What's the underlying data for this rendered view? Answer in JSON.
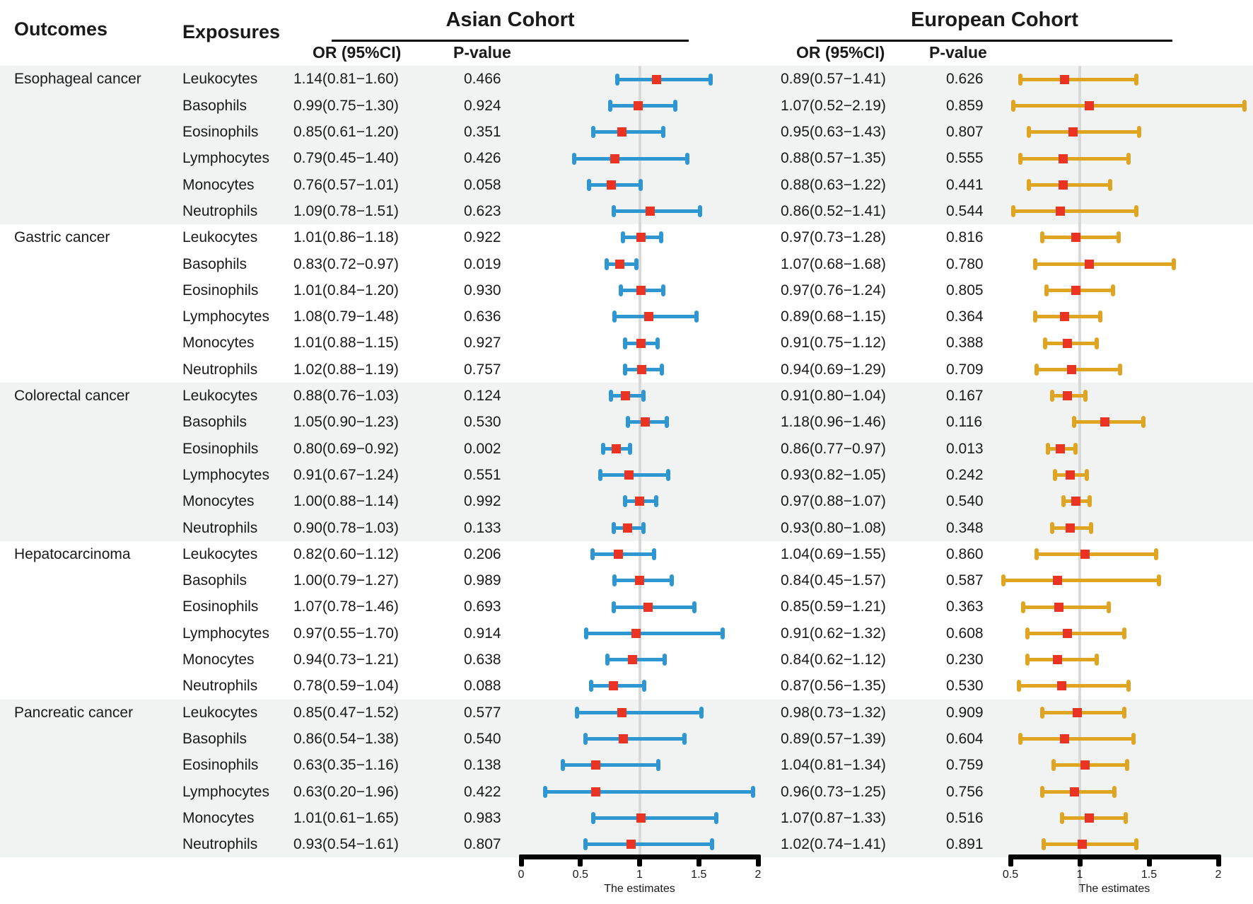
{
  "header": {
    "outcomes_label": "Outcomes",
    "exposures_label": "Exposures",
    "asian_title": "Asian Cohort",
    "european_title": "European Cohort",
    "or_label": "OR (95%CI)",
    "pvalue_label": "P-value"
  },
  "colors": {
    "bar_asian": "#2E96D1",
    "bar_european": "#DFA521",
    "marker": "#E93323",
    "ref_line": "#D9D9D9",
    "stripe": "#F1F2F2",
    "axis": "#000000"
  },
  "chart_data": {
    "type": "forest",
    "xlabel": "The estimates",
    "exposure_set": [
      "Leukocytes",
      "Basophils",
      "Eosinophils",
      "Lymphocytes",
      "Monocytes",
      "Neutrophils"
    ],
    "outcomes": [
      "Esophageal cancer",
      "Gastric cancer",
      "Colorectal cancer",
      "Hepatocarcinoma",
      "Pancreatic cancer"
    ],
    "cohorts": {
      "asian": {
        "name": "Asian Cohort",
        "xlim": [
          0,
          2
        ],
        "ticks": [
          "0",
          "0.5",
          "1",
          "1.5",
          "2"
        ],
        "ref": 1
      },
      "european": {
        "name": "European Cohort",
        "xlim": [
          0.5,
          2
        ],
        "ticks": [
          "0.5",
          "1",
          "1.5",
          "2"
        ],
        "ref": 1
      }
    },
    "rows": [
      {
        "outcome": "Esophageal cancer",
        "exposure": "Leukocytes",
        "asian": {
          "or": 1.14,
          "lo": 0.81,
          "hi": 1.6,
          "or_text": "1.14(0.81−1.60)",
          "p": "0.466"
        },
        "european": {
          "or": 0.89,
          "lo": 0.57,
          "hi": 1.41,
          "or_text": "0.89(0.57−1.41)",
          "p": "0.626"
        }
      },
      {
        "outcome": "Esophageal cancer",
        "exposure": "Basophils",
        "asian": {
          "or": 0.99,
          "lo": 0.75,
          "hi": 1.3,
          "or_text": "0.99(0.75−1.30)",
          "p": "0.924"
        },
        "european": {
          "or": 1.07,
          "lo": 0.52,
          "hi": 2.19,
          "or_text": "1.07(0.52−2.19)",
          "p": "0.859"
        }
      },
      {
        "outcome": "Esophageal cancer",
        "exposure": "Eosinophils",
        "asian": {
          "or": 0.85,
          "lo": 0.61,
          "hi": 1.2,
          "or_text": "0.85(0.61−1.20)",
          "p": "0.351"
        },
        "european": {
          "or": 0.95,
          "lo": 0.63,
          "hi": 1.43,
          "or_text": "0.95(0.63−1.43)",
          "p": "0.807"
        }
      },
      {
        "outcome": "Esophageal cancer",
        "exposure": "Lymphocytes",
        "asian": {
          "or": 0.79,
          "lo": 0.45,
          "hi": 1.4,
          "or_text": "0.79(0.45−1.40)",
          "p": "0.426"
        },
        "european": {
          "or": 0.88,
          "lo": 0.57,
          "hi": 1.35,
          "or_text": "0.88(0.57−1.35)",
          "p": "0.555"
        }
      },
      {
        "outcome": "Esophageal cancer",
        "exposure": "Monocytes",
        "asian": {
          "or": 0.76,
          "lo": 0.57,
          "hi": 1.01,
          "or_text": "0.76(0.57−1.01)",
          "p": "0.058"
        },
        "european": {
          "or": 0.88,
          "lo": 0.63,
          "hi": 1.22,
          "or_text": "0.88(0.63−1.22)",
          "p": "0.441"
        }
      },
      {
        "outcome": "Esophageal cancer",
        "exposure": "Neutrophils",
        "asian": {
          "or": 1.09,
          "lo": 0.78,
          "hi": 1.51,
          "or_text": "1.09(0.78−1.51)",
          "p": "0.623"
        },
        "european": {
          "or": 0.86,
          "lo": 0.52,
          "hi": 1.41,
          "or_text": "0.86(0.52−1.41)",
          "p": "0.544"
        }
      },
      {
        "outcome": "Gastric cancer",
        "exposure": "Leukocytes",
        "asian": {
          "or": 1.01,
          "lo": 0.86,
          "hi": 1.18,
          "or_text": "1.01(0.86−1.18)",
          "p": "0.922"
        },
        "european": {
          "or": 0.97,
          "lo": 0.73,
          "hi": 1.28,
          "or_text": "0.97(0.73−1.28)",
          "p": "0.816"
        }
      },
      {
        "outcome": "Gastric cancer",
        "exposure": "Basophils",
        "asian": {
          "or": 0.83,
          "lo": 0.72,
          "hi": 0.97,
          "or_text": "0.83(0.72−0.97)",
          "p": "0.019"
        },
        "european": {
          "or": 1.07,
          "lo": 0.68,
          "hi": 1.68,
          "or_text": "1.07(0.68−1.68)",
          "p": "0.780"
        }
      },
      {
        "outcome": "Gastric cancer",
        "exposure": "Eosinophils",
        "asian": {
          "or": 1.01,
          "lo": 0.84,
          "hi": 1.2,
          "or_text": "1.01(0.84−1.20)",
          "p": "0.930"
        },
        "european": {
          "or": 0.97,
          "lo": 0.76,
          "hi": 1.24,
          "or_text": "0.97(0.76−1.24)",
          "p": "0.805"
        }
      },
      {
        "outcome": "Gastric cancer",
        "exposure": "Lymphocytes",
        "asian": {
          "or": 1.08,
          "lo": 0.79,
          "hi": 1.48,
          "or_text": "1.08(0.79−1.48)",
          "p": "0.636"
        },
        "european": {
          "or": 0.89,
          "lo": 0.68,
          "hi": 1.15,
          "or_text": "0.89(0.68−1.15)",
          "p": "0.364"
        }
      },
      {
        "outcome": "Gastric cancer",
        "exposure": "Monocytes",
        "asian": {
          "or": 1.01,
          "lo": 0.88,
          "hi": 1.15,
          "or_text": "1.01(0.88−1.15)",
          "p": "0.927"
        },
        "european": {
          "or": 0.91,
          "lo": 0.75,
          "hi": 1.12,
          "or_text": "0.91(0.75−1.12)",
          "p": "0.388"
        }
      },
      {
        "outcome": "Gastric cancer",
        "exposure": "Neutrophils",
        "asian": {
          "or": 1.02,
          "lo": 0.88,
          "hi": 1.19,
          "or_text": "1.02(0.88−1.19)",
          "p": "0.757"
        },
        "european": {
          "or": 0.94,
          "lo": 0.69,
          "hi": 1.29,
          "or_text": "0.94(0.69−1.29)",
          "p": "0.709"
        }
      },
      {
        "outcome": "Colorectal cancer",
        "exposure": "Leukocytes",
        "asian": {
          "or": 0.88,
          "lo": 0.76,
          "hi": 1.03,
          "or_text": "0.88(0.76−1.03)",
          "p": "0.124"
        },
        "european": {
          "or": 0.91,
          "lo": 0.8,
          "hi": 1.04,
          "or_text": "0.91(0.80−1.04)",
          "p": "0.167"
        }
      },
      {
        "outcome": "Colorectal cancer",
        "exposure": "Basophils",
        "asian": {
          "or": 1.05,
          "lo": 0.9,
          "hi": 1.23,
          "or_text": "1.05(0.90−1.23)",
          "p": "0.530"
        },
        "european": {
          "or": 1.18,
          "lo": 0.96,
          "hi": 1.46,
          "or_text": "1.18(0.96−1.46)",
          "p": "0.116"
        }
      },
      {
        "outcome": "Colorectal cancer",
        "exposure": "Eosinophils",
        "asian": {
          "or": 0.8,
          "lo": 0.69,
          "hi": 0.92,
          "or_text": "0.80(0.69−0.92)",
          "p": "0.002"
        },
        "european": {
          "or": 0.86,
          "lo": 0.77,
          "hi": 0.97,
          "or_text": "0.86(0.77−0.97)",
          "p": "0.013"
        }
      },
      {
        "outcome": "Colorectal cancer",
        "exposure": "Lymphocytes",
        "asian": {
          "or": 0.91,
          "lo": 0.67,
          "hi": 1.24,
          "or_text": "0.91(0.67−1.24)",
          "p": "0.551"
        },
        "european": {
          "or": 0.93,
          "lo": 0.82,
          "hi": 1.05,
          "or_text": "0.93(0.82−1.05)",
          "p": "0.242"
        }
      },
      {
        "outcome": "Colorectal cancer",
        "exposure": "Monocytes",
        "asian": {
          "or": 1.0,
          "lo": 0.88,
          "hi": 1.14,
          "or_text": "1.00(0.88−1.14)",
          "p": "0.992"
        },
        "european": {
          "or": 0.97,
          "lo": 0.88,
          "hi": 1.07,
          "or_text": "0.97(0.88−1.07)",
          "p": "0.540"
        }
      },
      {
        "outcome": "Colorectal cancer",
        "exposure": "Neutrophils",
        "asian": {
          "or": 0.9,
          "lo": 0.78,
          "hi": 1.03,
          "or_text": "0.90(0.78−1.03)",
          "p": "0.133"
        },
        "european": {
          "or": 0.93,
          "lo": 0.8,
          "hi": 1.08,
          "or_text": "0.93(0.80−1.08)",
          "p": "0.348"
        }
      },
      {
        "outcome": "Hepatocarcinoma",
        "exposure": "Leukocytes",
        "asian": {
          "or": 0.82,
          "lo": 0.6,
          "hi": 1.12,
          "or_text": "0.82(0.60−1.12)",
          "p": "0.206"
        },
        "european": {
          "or": 1.04,
          "lo": 0.69,
          "hi": 1.55,
          "or_text": "1.04(0.69−1.55)",
          "p": "0.860"
        }
      },
      {
        "outcome": "Hepatocarcinoma",
        "exposure": "Basophils",
        "asian": {
          "or": 1.0,
          "lo": 0.79,
          "hi": 1.27,
          "or_text": "1.00(0.79−1.27)",
          "p": "0.989"
        },
        "european": {
          "or": 0.84,
          "lo": 0.45,
          "hi": 1.57,
          "or_text": "0.84(0.45−1.57)",
          "p": "0.587"
        }
      },
      {
        "outcome": "Hepatocarcinoma",
        "exposure": "Eosinophils",
        "asian": {
          "or": 1.07,
          "lo": 0.78,
          "hi": 1.46,
          "or_text": "1.07(0.78−1.46)",
          "p": "0.693"
        },
        "european": {
          "or": 0.85,
          "lo": 0.59,
          "hi": 1.21,
          "or_text": "0.85(0.59−1.21)",
          "p": "0.363"
        }
      },
      {
        "outcome": "Hepatocarcinoma",
        "exposure": "Lymphocytes",
        "asian": {
          "or": 0.97,
          "lo": 0.55,
          "hi": 1.7,
          "or_text": "0.97(0.55−1.70)",
          "p": "0.914"
        },
        "european": {
          "or": 0.91,
          "lo": 0.62,
          "hi": 1.32,
          "or_text": "0.91(0.62−1.32)",
          "p": "0.608"
        }
      },
      {
        "outcome": "Hepatocarcinoma",
        "exposure": "Monocytes",
        "asian": {
          "or": 0.94,
          "lo": 0.73,
          "hi": 1.21,
          "or_text": "0.94(0.73−1.21)",
          "p": "0.638"
        },
        "european": {
          "or": 0.84,
          "lo": 0.62,
          "hi": 1.12,
          "or_text": "0.84(0.62−1.12)",
          "p": "0.230"
        }
      },
      {
        "outcome": "Hepatocarcinoma",
        "exposure": "Neutrophils",
        "asian": {
          "or": 0.78,
          "lo": 0.59,
          "hi": 1.04,
          "or_text": "0.78(0.59−1.04)",
          "p": "0.088"
        },
        "european": {
          "or": 0.87,
          "lo": 0.56,
          "hi": 1.35,
          "or_text": "0.87(0.56−1.35)",
          "p": "0.530"
        }
      },
      {
        "outcome": "Pancreatic cancer",
        "exposure": "Leukocytes",
        "asian": {
          "or": 0.85,
          "lo": 0.47,
          "hi": 1.52,
          "or_text": "0.85(0.47−1.52)",
          "p": "0.577"
        },
        "european": {
          "or": 0.98,
          "lo": 0.73,
          "hi": 1.32,
          "or_text": "0.98(0.73−1.32)",
          "p": "0.909"
        }
      },
      {
        "outcome": "Pancreatic cancer",
        "exposure": "Basophils",
        "asian": {
          "or": 0.86,
          "lo": 0.54,
          "hi": 1.38,
          "or_text": "0.86(0.54−1.38)",
          "p": "0.540"
        },
        "european": {
          "or": 0.89,
          "lo": 0.57,
          "hi": 1.39,
          "or_text": "0.89(0.57−1.39)",
          "p": "0.604"
        }
      },
      {
        "outcome": "Pancreatic cancer",
        "exposure": "Eosinophils",
        "asian": {
          "or": 0.63,
          "lo": 0.35,
          "hi": 1.16,
          "or_text": "0.63(0.35−1.16)",
          "p": "0.138"
        },
        "european": {
          "or": 1.04,
          "lo": 0.81,
          "hi": 1.34,
          "or_text": "1.04(0.81−1.34)",
          "p": "0.759"
        }
      },
      {
        "outcome": "Pancreatic cancer",
        "exposure": "Lymphocytes",
        "asian": {
          "or": 0.63,
          "lo": 0.2,
          "hi": 1.96,
          "or_text": "0.63(0.20−1.96)",
          "p": "0.422"
        },
        "european": {
          "or": 0.96,
          "lo": 0.73,
          "hi": 1.25,
          "or_text": "0.96(0.73−1.25)",
          "p": "0.756"
        }
      },
      {
        "outcome": "Pancreatic cancer",
        "exposure": "Monocytes",
        "asian": {
          "or": 1.01,
          "lo": 0.61,
          "hi": 1.65,
          "or_text": "1.01(0.61−1.65)",
          "p": "0.983"
        },
        "european": {
          "or": 1.07,
          "lo": 0.87,
          "hi": 1.33,
          "or_text": "1.07(0.87−1.33)",
          "p": "0.516"
        }
      },
      {
        "outcome": "Pancreatic cancer",
        "exposure": "Neutrophils",
        "asian": {
          "or": 0.93,
          "lo": 0.54,
          "hi": 1.61,
          "or_text": "0.93(0.54−1.61)",
          "p": "0.807"
        },
        "european": {
          "or": 1.02,
          "lo": 0.74,
          "hi": 1.41,
          "or_text": "1.02(0.74−1.41)",
          "p": "0.891"
        }
      }
    ]
  }
}
